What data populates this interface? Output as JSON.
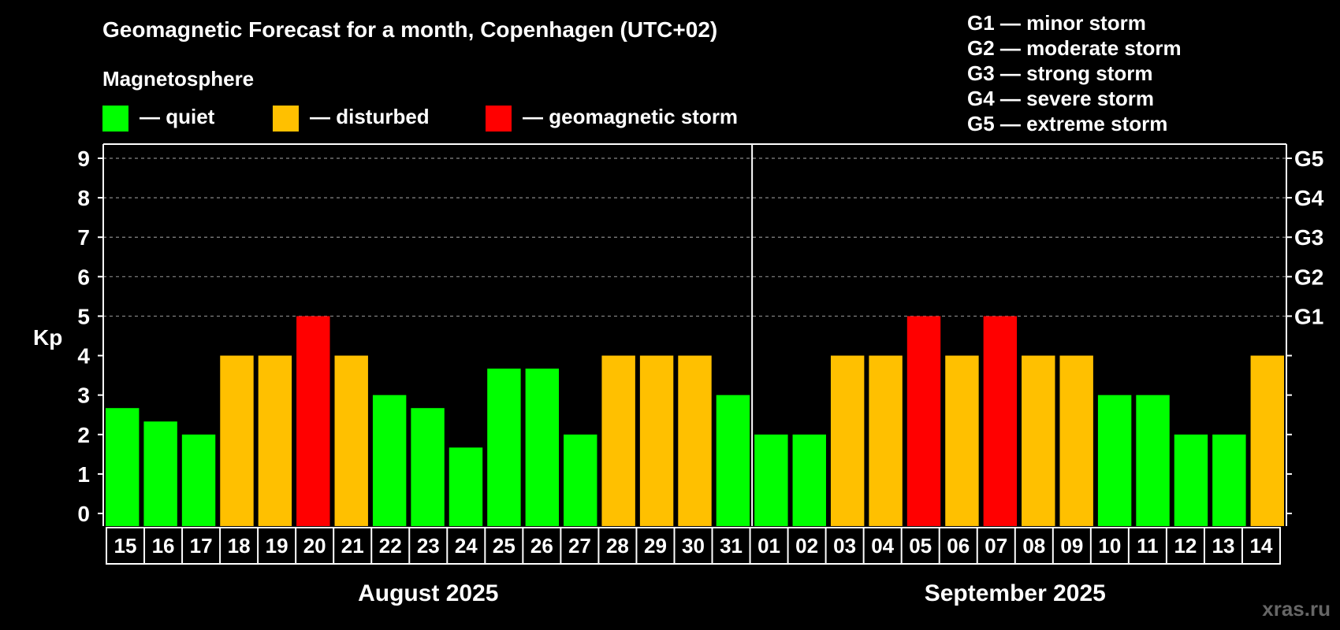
{
  "chart_data": {
    "type": "bar",
    "title": "Geomagnetic Forecast for a month, Copenhagen (UTC+02)",
    "legend_title": "Magnetosphere",
    "legend": [
      {
        "label": "— quiet",
        "color": "#00ff00"
      },
      {
        "label": "— disturbed",
        "color": "#ffc000"
      },
      {
        "label": "— geomagnetic storm",
        "color": "#ff0000"
      }
    ],
    "g_scale_legend": [
      "G1 — minor storm",
      "G2 — moderate storm",
      "G3 — strong storm",
      "G4 — severe storm",
      "G5 — extreme storm"
    ],
    "ylabel": "Kp",
    "ylim": [
      0,
      9
    ],
    "yticks": [
      "0",
      "1",
      "2",
      "3",
      "4",
      "5",
      "6",
      "7",
      "8",
      "9"
    ],
    "right_axis_labels": [
      {
        "y": 5,
        "label": "G1"
      },
      {
        "y": 6,
        "label": "G2"
      },
      {
        "y": 7,
        "label": "G3"
      },
      {
        "y": 8,
        "label": "G4"
      },
      {
        "y": 9,
        "label": "G5"
      }
    ],
    "grid": "dashed, from Kp 5 to 9",
    "categories": [
      "15",
      "16",
      "17",
      "18",
      "19",
      "20",
      "21",
      "22",
      "23",
      "24",
      "25",
      "26",
      "27",
      "28",
      "29",
      "30",
      "31",
      "01",
      "02",
      "03",
      "04",
      "05",
      "06",
      "07",
      "08",
      "09",
      "10",
      "11",
      "12",
      "13",
      "14"
    ],
    "values": [
      2.67,
      2.33,
      2,
      4,
      4,
      5,
      4,
      3,
      2.67,
      1.67,
      3.67,
      3.67,
      2,
      4,
      4,
      4,
      3,
      2,
      2,
      4,
      4,
      5,
      4,
      5,
      4,
      4,
      3,
      3,
      2,
      2,
      4
    ],
    "levels": [
      "quiet",
      "quiet",
      "quiet",
      "disturbed",
      "disturbed",
      "storm",
      "disturbed",
      "quiet",
      "quiet",
      "quiet",
      "quiet",
      "quiet",
      "quiet",
      "disturbed",
      "disturbed",
      "disturbed",
      "quiet",
      "quiet",
      "quiet",
      "disturbed",
      "disturbed",
      "storm",
      "disturbed",
      "storm",
      "disturbed",
      "disturbed",
      "quiet",
      "quiet",
      "quiet",
      "quiet",
      "disturbed"
    ],
    "level_colors": {
      "quiet": "#00ff00",
      "disturbed": "#ffc000",
      "storm": "#ff0000"
    },
    "months": [
      {
        "label": "August 2025",
        "count": 17
      },
      {
        "label": "September 2025",
        "count": 14
      }
    ]
  },
  "watermark": "xras.ru"
}
